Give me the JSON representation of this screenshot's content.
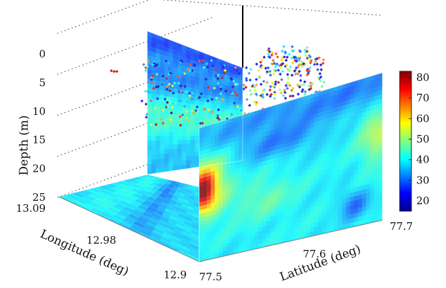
{
  "chart_data": {
    "type": "heatmap",
    "subtype": "3d-slice-volume",
    "title": "",
    "axes": {
      "depth": {
        "label": "Depth (m)",
        "ticks": [
          0,
          5,
          10,
          15,
          20,
          25
        ],
        "tick_labels": [
          "0",
          "5",
          "10",
          "15",
          "20",
          "25"
        ],
        "range": [
          0,
          25
        ],
        "direction": "down"
      },
      "longitude": {
        "label": "Longitude (deg)",
        "ticks": [
          13.09,
          12.98,
          12.9
        ],
        "tick_labels": [
          "13.09",
          "12.98",
          "12.9"
        ],
        "range": [
          12.9,
          13.09
        ]
      },
      "latitude": {
        "label": "Latitude (deg)",
        "ticks": [
          77.5,
          77.6,
          77.7
        ],
        "tick_labels": [
          "77.5",
          "77.6",
          "77.7"
        ],
        "range": [
          77.5,
          77.7
        ]
      }
    },
    "colorbar": {
      "ticks": [
        20,
        30,
        40,
        50,
        60,
        70,
        80
      ],
      "tick_labels": [
        "20",
        "30",
        "40",
        "50",
        "60",
        "70",
        "80"
      ],
      "range": [
        15,
        83
      ],
      "colormap": "jet",
      "placement": "right"
    },
    "slices": [
      {
        "plane": "depth-latitude at longitude 12.9",
        "base_value": 40,
        "features": [
          {
            "description": "high-value core near 77.51 deg, 10-15 m",
            "latitude": 77.51,
            "depth": 12,
            "value": 75
          },
          {
            "description": "surface low band",
            "depth": 2,
            "value": 28
          },
          {
            "description": "deep low patches near 77.68 deg",
            "latitude": 77.68,
            "depth": 22,
            "value": 30
          },
          {
            "description": "warm patch near 77.7 deg",
            "latitude": 77.7,
            "depth": 8,
            "value": 52
          }
        ]
      },
      {
        "plane": "depth-longitude at latitude 77.5",
        "base_value": 36,
        "features": [
          {
            "description": "near-surface low band",
            "depth": 2,
            "value": 27
          },
          {
            "description": "mid-depth warmer",
            "depth": 12,
            "value": 44
          }
        ]
      },
      {
        "plane": "longitude-latitude at depth 25 m",
        "base_value": 38,
        "features": [
          {
            "description": "dark streak toward high longitude",
            "value": 32
          }
        ]
      }
    ],
    "scatter": {
      "description": "individual observations plotted in the upper water column",
      "depth_range": [
        0,
        12
      ],
      "value_range": [
        18,
        82
      ]
    },
    "grid": true,
    "legend": "none"
  }
}
